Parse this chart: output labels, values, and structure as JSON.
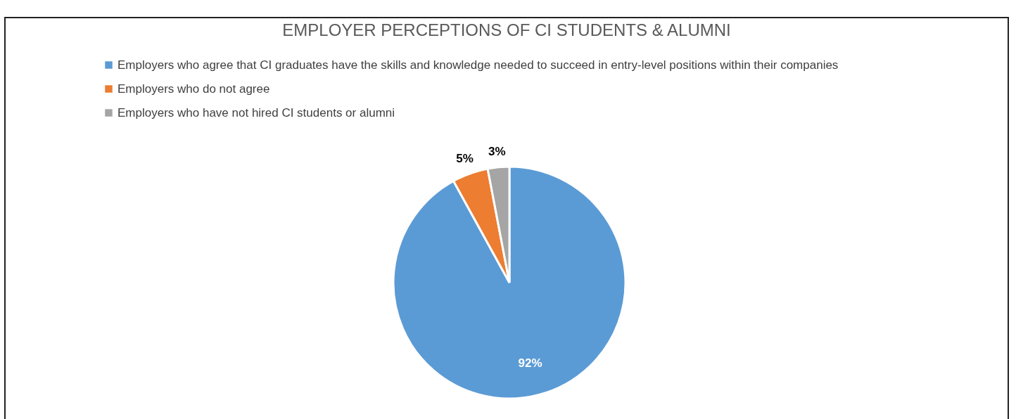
{
  "chart_data": {
    "type": "pie",
    "title": "EMPLOYER PERCEPTIONS OF CI STUDENTS & ALUMNI",
    "categories": [
      "Employers who agree that CI graduates have the skills and knowledge needed to succeed in entry-level positions within their companies",
      "Employers who do not agree",
      "Employers who have not hired CI students or alumni"
    ],
    "values": [
      92,
      5,
      3
    ],
    "value_labels": [
      "92%",
      "5%",
      "3%"
    ],
    "colors": [
      "#5b9bd5",
      "#ed7d31",
      "#a5a5a5"
    ],
    "legend": "top left"
  }
}
